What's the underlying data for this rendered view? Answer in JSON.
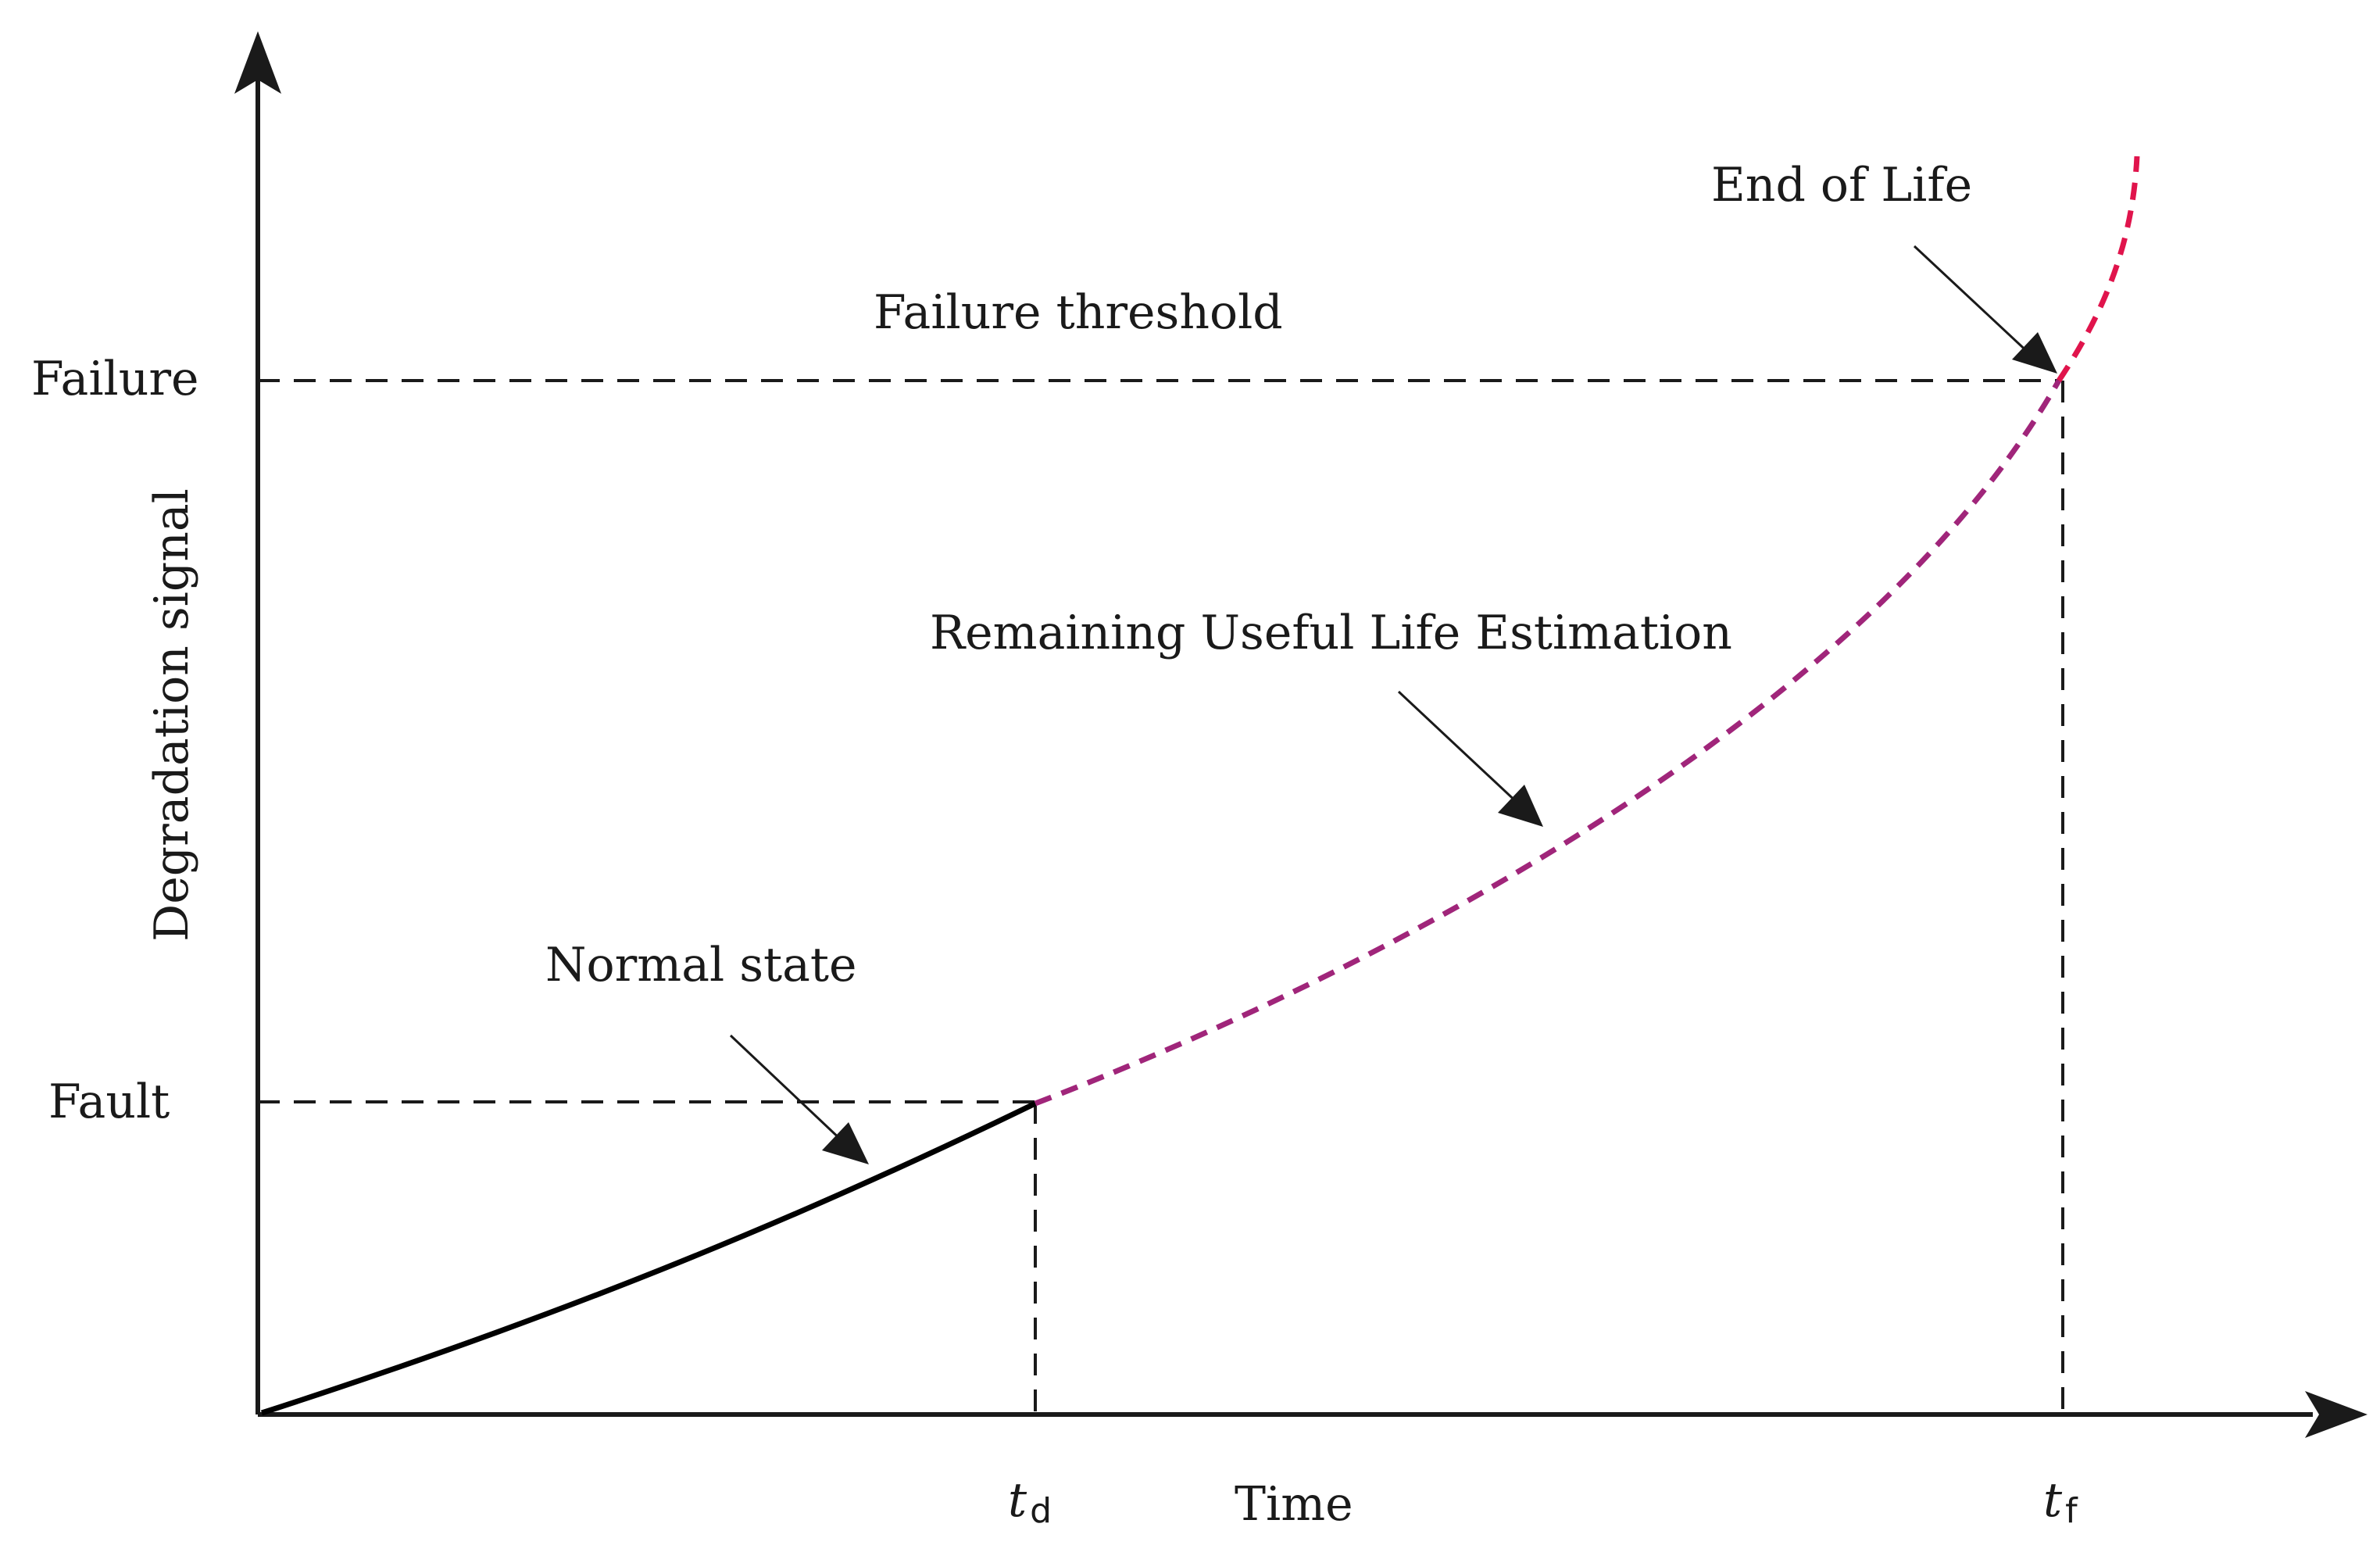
{
  "diagram": {
    "y_axis_label": "Degradation signal",
    "x_axis_label": "Time",
    "y_levels": {
      "failure": "Failure",
      "fault": "Fault"
    },
    "x_ticks": {
      "td_main": "t",
      "td_sub": "d",
      "tf_main": "t",
      "tf_sub": "f"
    },
    "annotations": {
      "failure_threshold": "Failure threshold",
      "end_of_life": "End of Life",
      "rul_estimation": "Remaining Useful Life Estimation",
      "normal_state": "Normal state"
    },
    "curves": {
      "normal_state_color": "#000000",
      "rul_color": "#a0257a",
      "end_of_life_color": "#e0144c"
    }
  }
}
